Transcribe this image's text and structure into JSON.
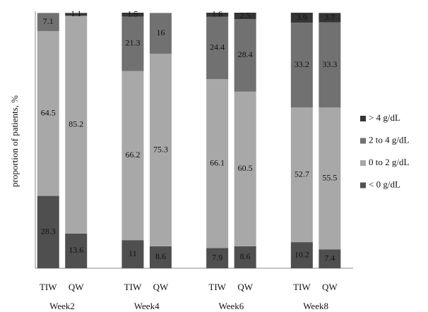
{
  "chart_data": {
    "type": "stacked_bar",
    "y_label": "proportion of patients, %",
    "categories": [
      "TIW",
      "QW",
      "TIW",
      "QW",
      "TIW",
      "QW",
      "TIW",
      "QW"
    ],
    "groups": [
      "Week2",
      "Week4",
      "Week6",
      "Week8"
    ],
    "ylim": [
      0,
      100
    ],
    "series": [
      {
        "name": "< 0 g/dL",
        "color": "#4f4f4f",
        "values": [
          28.3,
          13.6,
          11,
          8.6,
          7.9,
          8.6,
          10.2,
          7.4
        ]
      },
      {
        "name": "0 to 2 g/dL",
        "color": "#a8a8a8",
        "values": [
          64.5,
          85.2,
          66.2,
          75.3,
          66.1,
          60.5,
          52.7,
          55.5
        ]
      },
      {
        "name": "2 to 4 g/dL",
        "color": "#717171",
        "values": [
          7.1,
          null,
          21.3,
          16,
          24.4,
          28.4,
          33.2,
          33.3
        ]
      },
      {
        "name": "> 4 g/dL",
        "color": "#353535",
        "values": [
          null,
          1.1,
          1.5,
          null,
          1.6,
          2.5,
          3.9,
          3.7
        ]
      }
    ],
    "legend": "right"
  }
}
